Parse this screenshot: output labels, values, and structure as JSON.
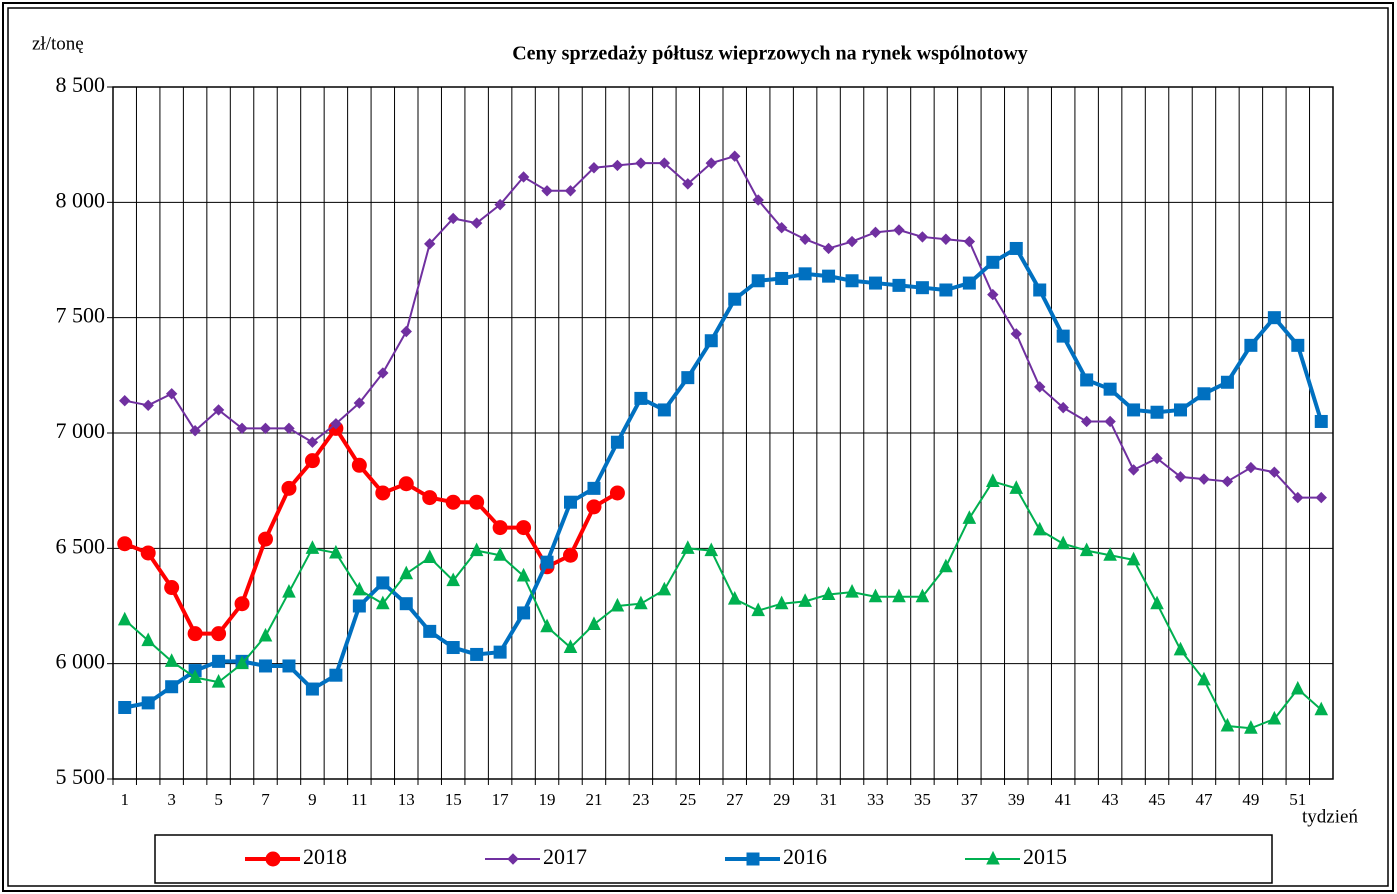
{
  "chart_data": {
    "type": "line",
    "title": "Ceny sprzedaży półtusz wieprzowych  na rynek wspólnotowy",
    "y_label": "zł/tonę",
    "x_label": "tydzień",
    "categories": [
      "1",
      null,
      "3",
      null,
      "5",
      null,
      "7",
      null,
      "9",
      null,
      "11",
      null,
      "13",
      null,
      "15",
      null,
      "17",
      null,
      "19",
      null,
      "21",
      null,
      "23",
      null,
      "25",
      null,
      "27",
      null,
      "29",
      null,
      "31",
      null,
      "33",
      null,
      "35",
      null,
      "37",
      null,
      "39",
      null,
      "41",
      null,
      "43",
      null,
      "45",
      null,
      "47",
      null,
      "49",
      null,
      "51",
      null
    ],
    "ylim": [
      5500,
      8500
    ],
    "yticks": [
      {
        "value": 5500,
        "label": "5 500"
      },
      {
        "value": 6000,
        "label": "6 000"
      },
      {
        "value": 6500,
        "label": "6 500"
      },
      {
        "value": 7000,
        "label": "7 000"
      },
      {
        "value": 7500,
        "label": "7 500"
      },
      {
        "value": 8000,
        "label": "8 000"
      },
      {
        "value": 8500,
        "label": "8 500"
      }
    ],
    "grid": true,
    "legend": "bottom",
    "series": [
      {
        "name": "2018",
        "color": "#ff0000",
        "marker": "circle",
        "values": [
          6520,
          6480,
          6330,
          6130,
          6130,
          6260,
          6540,
          6760,
          6880,
          7020,
          6860,
          6740,
          6780,
          6720,
          6700,
          6700,
          6590,
          6590,
          6420,
          6470,
          6680,
          6740,
          null,
          null,
          null,
          null,
          null,
          null,
          null,
          null,
          null,
          null,
          null,
          null,
          null,
          null,
          null,
          null,
          null,
          null,
          null,
          null,
          null,
          null,
          null,
          null,
          null,
          null,
          null,
          null,
          null,
          null
        ]
      },
      {
        "name": "2017",
        "color": "#7030a0",
        "marker": "diamond",
        "values": [
          7140,
          7120,
          7170,
          7010,
          7100,
          7020,
          7020,
          7020,
          6960,
          7040,
          7130,
          7260,
          7440,
          7820,
          7930,
          7910,
          7990,
          8110,
          8050,
          8050,
          8150,
          8160,
          8170,
          8170,
          8080,
          8170,
          8200,
          8010,
          7890,
          7840,
          7800,
          7830,
          7870,
          7880,
          7850,
          7840,
          7830,
          7600,
          7430,
          7200,
          7110,
          7050,
          7050,
          6840,
          6890,
          6810,
          6800,
          6790,
          6850,
          6830,
          6720,
          6720
        ]
      },
      {
        "name": "2016",
        "color": "#0070c0",
        "marker": "square",
        "values": [
          5810,
          5830,
          5900,
          5970,
          6010,
          6010,
          5990,
          5990,
          5890,
          5950,
          6250,
          6350,
          6260,
          6140,
          6070,
          6040,
          6050,
          6220,
          6440,
          6700,
          6760,
          6960,
          7150,
          7100,
          7240,
          7400,
          7580,
          7660,
          7670,
          7690,
          7680,
          7660,
          7650,
          7640,
          7630,
          7620,
          7650,
          7740,
          7800,
          7620,
          7420,
          7230,
          7190,
          7100,
          7090,
          7100,
          7170,
          7220,
          7380,
          7500,
          7380,
          7050
        ]
      },
      {
        "name": "2015",
        "color": "#00b050",
        "marker": "triangle",
        "values": [
          6190,
          6100,
          6010,
          5940,
          5920,
          6000,
          6120,
          6310,
          6500,
          6480,
          6320,
          6260,
          6390,
          6460,
          6360,
          6490,
          6470,
          6380,
          6160,
          6070,
          6170,
          6250,
          6260,
          6320,
          6500,
          6490,
          6280,
          6230,
          6260,
          6270,
          6300,
          6310,
          6290,
          6290,
          6290,
          6420,
          6630,
          6790,
          6760,
          6580,
          6520,
          6490,
          6470,
          6450,
          6260,
          6060,
          5930,
          5730,
          5720,
          5760,
          5890,
          5800
        ]
      }
    ]
  }
}
